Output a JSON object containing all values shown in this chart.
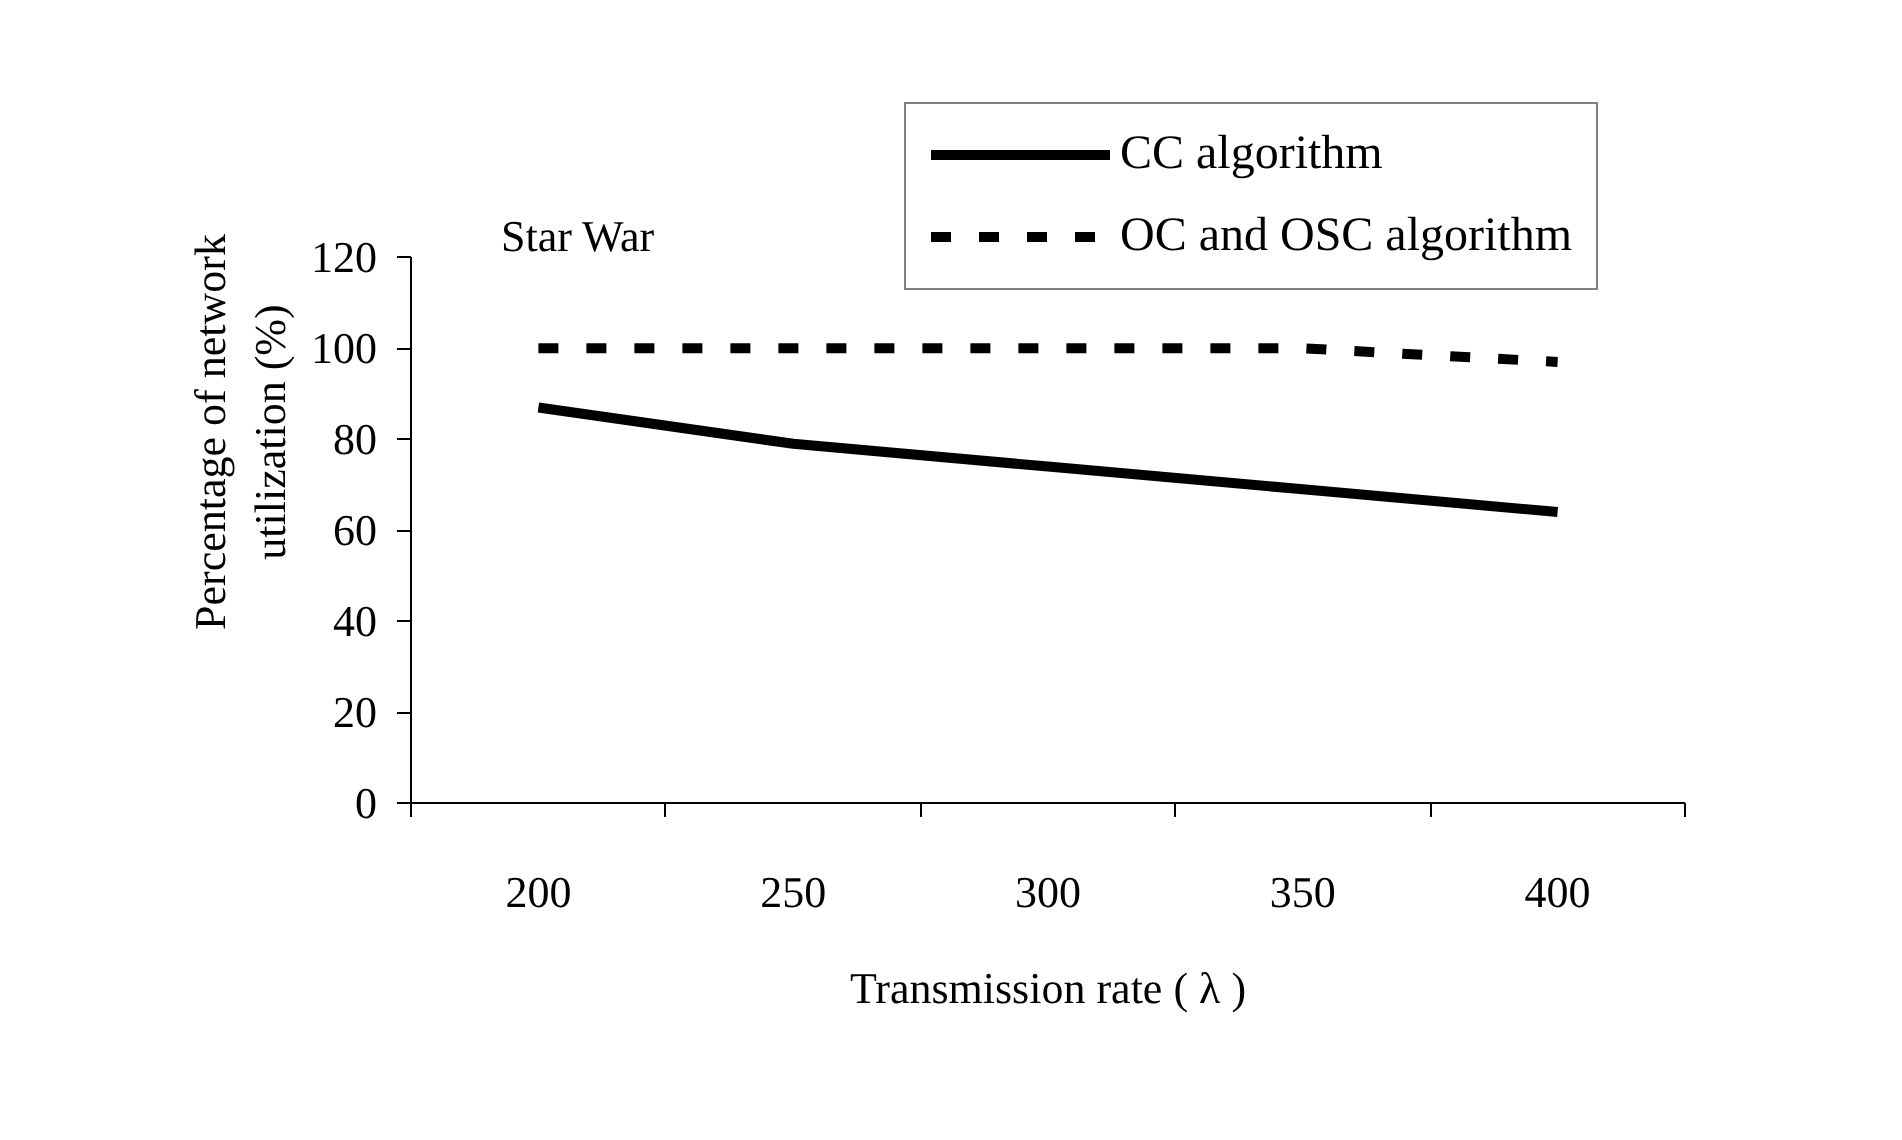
{
  "chart_data": {
    "type": "line",
    "xlabel": "Transmission rate ( λ )",
    "ylabel": "Percentage of network\nutilization (%)",
    "categories": [
      "200",
      "250",
      "300",
      "350",
      "400"
    ],
    "series": [
      {
        "name": "CC algorithm",
        "color": "#000000",
        "line_style": "solid",
        "values": [
          87,
          79,
          74,
          69,
          64
        ]
      },
      {
        "name": "OC and OSC algorithm",
        "color": "#000000",
        "line_style": "dashed",
        "values": [
          100,
          100,
          100,
          100,
          97
        ]
      }
    ],
    "ylim": [
      0,
      120
    ],
    "yticks": [
      0,
      20,
      40,
      60,
      80,
      100,
      120
    ],
    "grid": false,
    "legend": "top right",
    "annotations": [
      "Star War"
    ]
  }
}
